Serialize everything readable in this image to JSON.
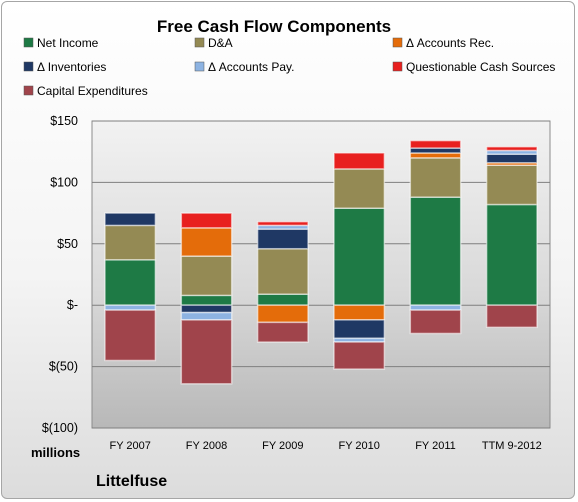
{
  "chart_data": {
    "type": "bar",
    "stacked": true,
    "title": "Free Cash Flow Components",
    "categories": [
      "FY 2007",
      "FY 2008",
      "FY 2009",
      "FY 2010",
      "FY 2011",
      "TTM 9-2012"
    ],
    "ylim": [
      -100,
      150
    ],
    "yticks": [
      {
        "value": 150,
        "label": "$150"
      },
      {
        "value": 100,
        "label": "$100"
      },
      {
        "value": 50,
        "label": "$50"
      },
      {
        "value": 0,
        "label": "$-"
      },
      {
        "value": -50,
        "label": "$(50)"
      },
      {
        "value": -100,
        "label": "$(100)"
      }
    ],
    "units_label": "millions",
    "company": "Littelfuse",
    "legend_position": "top",
    "series": [
      {
        "name": "Net Income",
        "color": "#1e7a45",
        "values": [
          37,
          8,
          9,
          79,
          88,
          82
        ]
      },
      {
        "name": "D&A",
        "color": "#948a54",
        "values": [
          28,
          32,
          37,
          32,
          32,
          32
        ]
      },
      {
        "name": "Δ Accounts Rec.",
        "color": "#e46c0a",
        "values": [
          0,
          23,
          -14,
          -12,
          4,
          2
        ]
      },
      {
        "name": "Δ Inventories",
        "color": "#1f3864",
        "values": [
          10,
          -6,
          16,
          -15,
          4,
          7
        ]
      },
      {
        "name": "Δ Accounts Pay.",
        "color": "#8db3e2",
        "values": [
          -4,
          -6,
          3,
          -3,
          -4,
          3
        ]
      },
      {
        "name": "Questionable Cash Sources",
        "color": "#e8201f",
        "values": [
          0,
          12,
          3,
          13,
          6,
          3
        ]
      },
      {
        "name": "Capital Expenditures",
        "color": "#a0444b",
        "values": [
          -41,
          -52,
          -16,
          -22,
          -19,
          -18
        ]
      }
    ]
  }
}
